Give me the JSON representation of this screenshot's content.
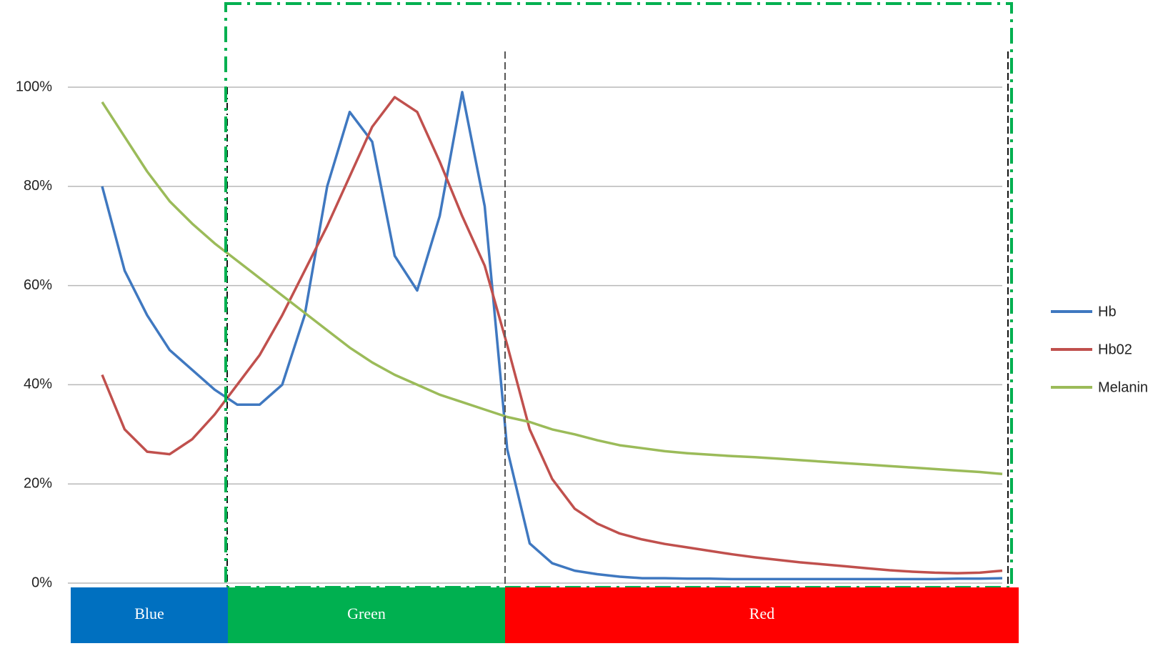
{
  "chart_data": {
    "type": "line",
    "categories": [
      null,
      null,
      null,
      null,
      null,
      null,
      null,
      null,
      null,
      null,
      null,
      null,
      null,
      null,
      null,
      null,
      null,
      null,
      null,
      null,
      null,
      null,
      null,
      null,
      null,
      null,
      null,
      null,
      null,
      null,
      null,
      null,
      null,
      null,
      null,
      null,
      null,
      null,
      null,
      null,
      null
    ],
    "series": [
      {
        "name": "Hb",
        "color": "#3f78c0",
        "values": [
          80,
          63,
          54,
          47,
          43,
          39,
          36,
          36,
          40,
          54,
          80,
          95,
          89,
          66,
          59,
          74,
          99,
          76,
          27,
          8,
          4,
          2.5,
          1.8,
          1.3,
          1,
          1,
          0.9,
          0.9,
          0.8,
          0.8,
          0.8,
          0.8,
          0.8,
          0.8,
          0.8,
          0.8,
          0.8,
          0.8,
          0.9,
          0.9,
          1
        ]
      },
      {
        "name": "Hb02",
        "color": "#c0504d",
        "values": [
          42,
          31,
          26.5,
          26,
          29,
          34,
          40,
          46,
          54,
          63,
          72,
          82,
          92,
          98,
          95,
          85,
          74,
          64,
          48,
          31,
          21,
          15,
          12,
          10,
          8.8,
          7.9,
          7.2,
          6.5,
          5.8,
          5.2,
          4.7,
          4.2,
          3.8,
          3.4,
          3,
          2.6,
          2.3,
          2.1,
          2,
          2.1,
          2.5
        ]
      },
      {
        "name": "Melanin",
        "color": "#9bbb59",
        "values": [
          97,
          90,
          83,
          77,
          72.5,
          68.5,
          65,
          61.5,
          58,
          54.5,
          51,
          47.5,
          44.5,
          42,
          40,
          38,
          36.5,
          35,
          33.5,
          32.5,
          31,
          30,
          28.8,
          27.8,
          27.2,
          26.6,
          26.2,
          25.9,
          25.6,
          25.4,
          25.1,
          24.8,
          24.5,
          24.2,
          23.9,
          23.6,
          23.3,
          23,
          22.7,
          22.4,
          22
        ]
      }
    ],
    "ylim": [
      0,
      100
    ],
    "yticks": [
      {
        "value": 0,
        "label": "0%"
      },
      {
        "value": 20,
        "label": "20%"
      },
      {
        "value": 40,
        "label": "40%"
      },
      {
        "value": 60,
        "label": "60%"
      },
      {
        "value": 80,
        "label": "80%"
      },
      {
        "value": 100,
        "label": "100%"
      }
    ],
    "grid": true,
    "legend": "right",
    "bands": [
      {
        "label": "Blue",
        "color": "#0070c0"
      },
      {
        "label": "Green",
        "color": "#00b050"
      },
      {
        "label": "Red",
        "color": "#ff0000"
      }
    ]
  }
}
